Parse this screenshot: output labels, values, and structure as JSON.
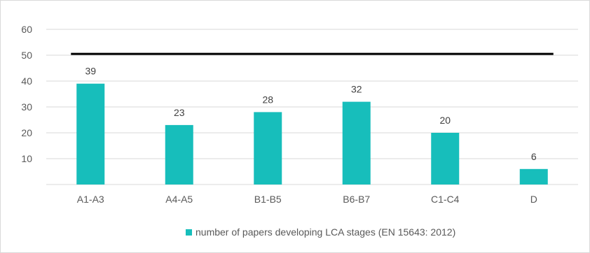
{
  "chart_data": {
    "type": "bar",
    "title": "",
    "xlabel": "",
    "ylabel": "",
    "categories": [
      "A1-A3",
      "A4-A5",
      "B1-B5",
      "B6-B7",
      "C1-C4",
      "D"
    ],
    "series": [
      {
        "name": "number of papers developing LCA stages (EN 15643: 2012)",
        "values": [
          39,
          23,
          28,
          32,
          20,
          6
        ],
        "color": "#17bebb"
      }
    ],
    "reference_line": {
      "value": 50.5,
      "color": "#000000"
    },
    "y_ticks": [
      10,
      20,
      30,
      40,
      50,
      60
    ],
    "ylim": [
      0,
      60
    ],
    "grid": true,
    "grid_color": "#d9d9d9",
    "data_labels": true,
    "legend_position": "bottom"
  }
}
